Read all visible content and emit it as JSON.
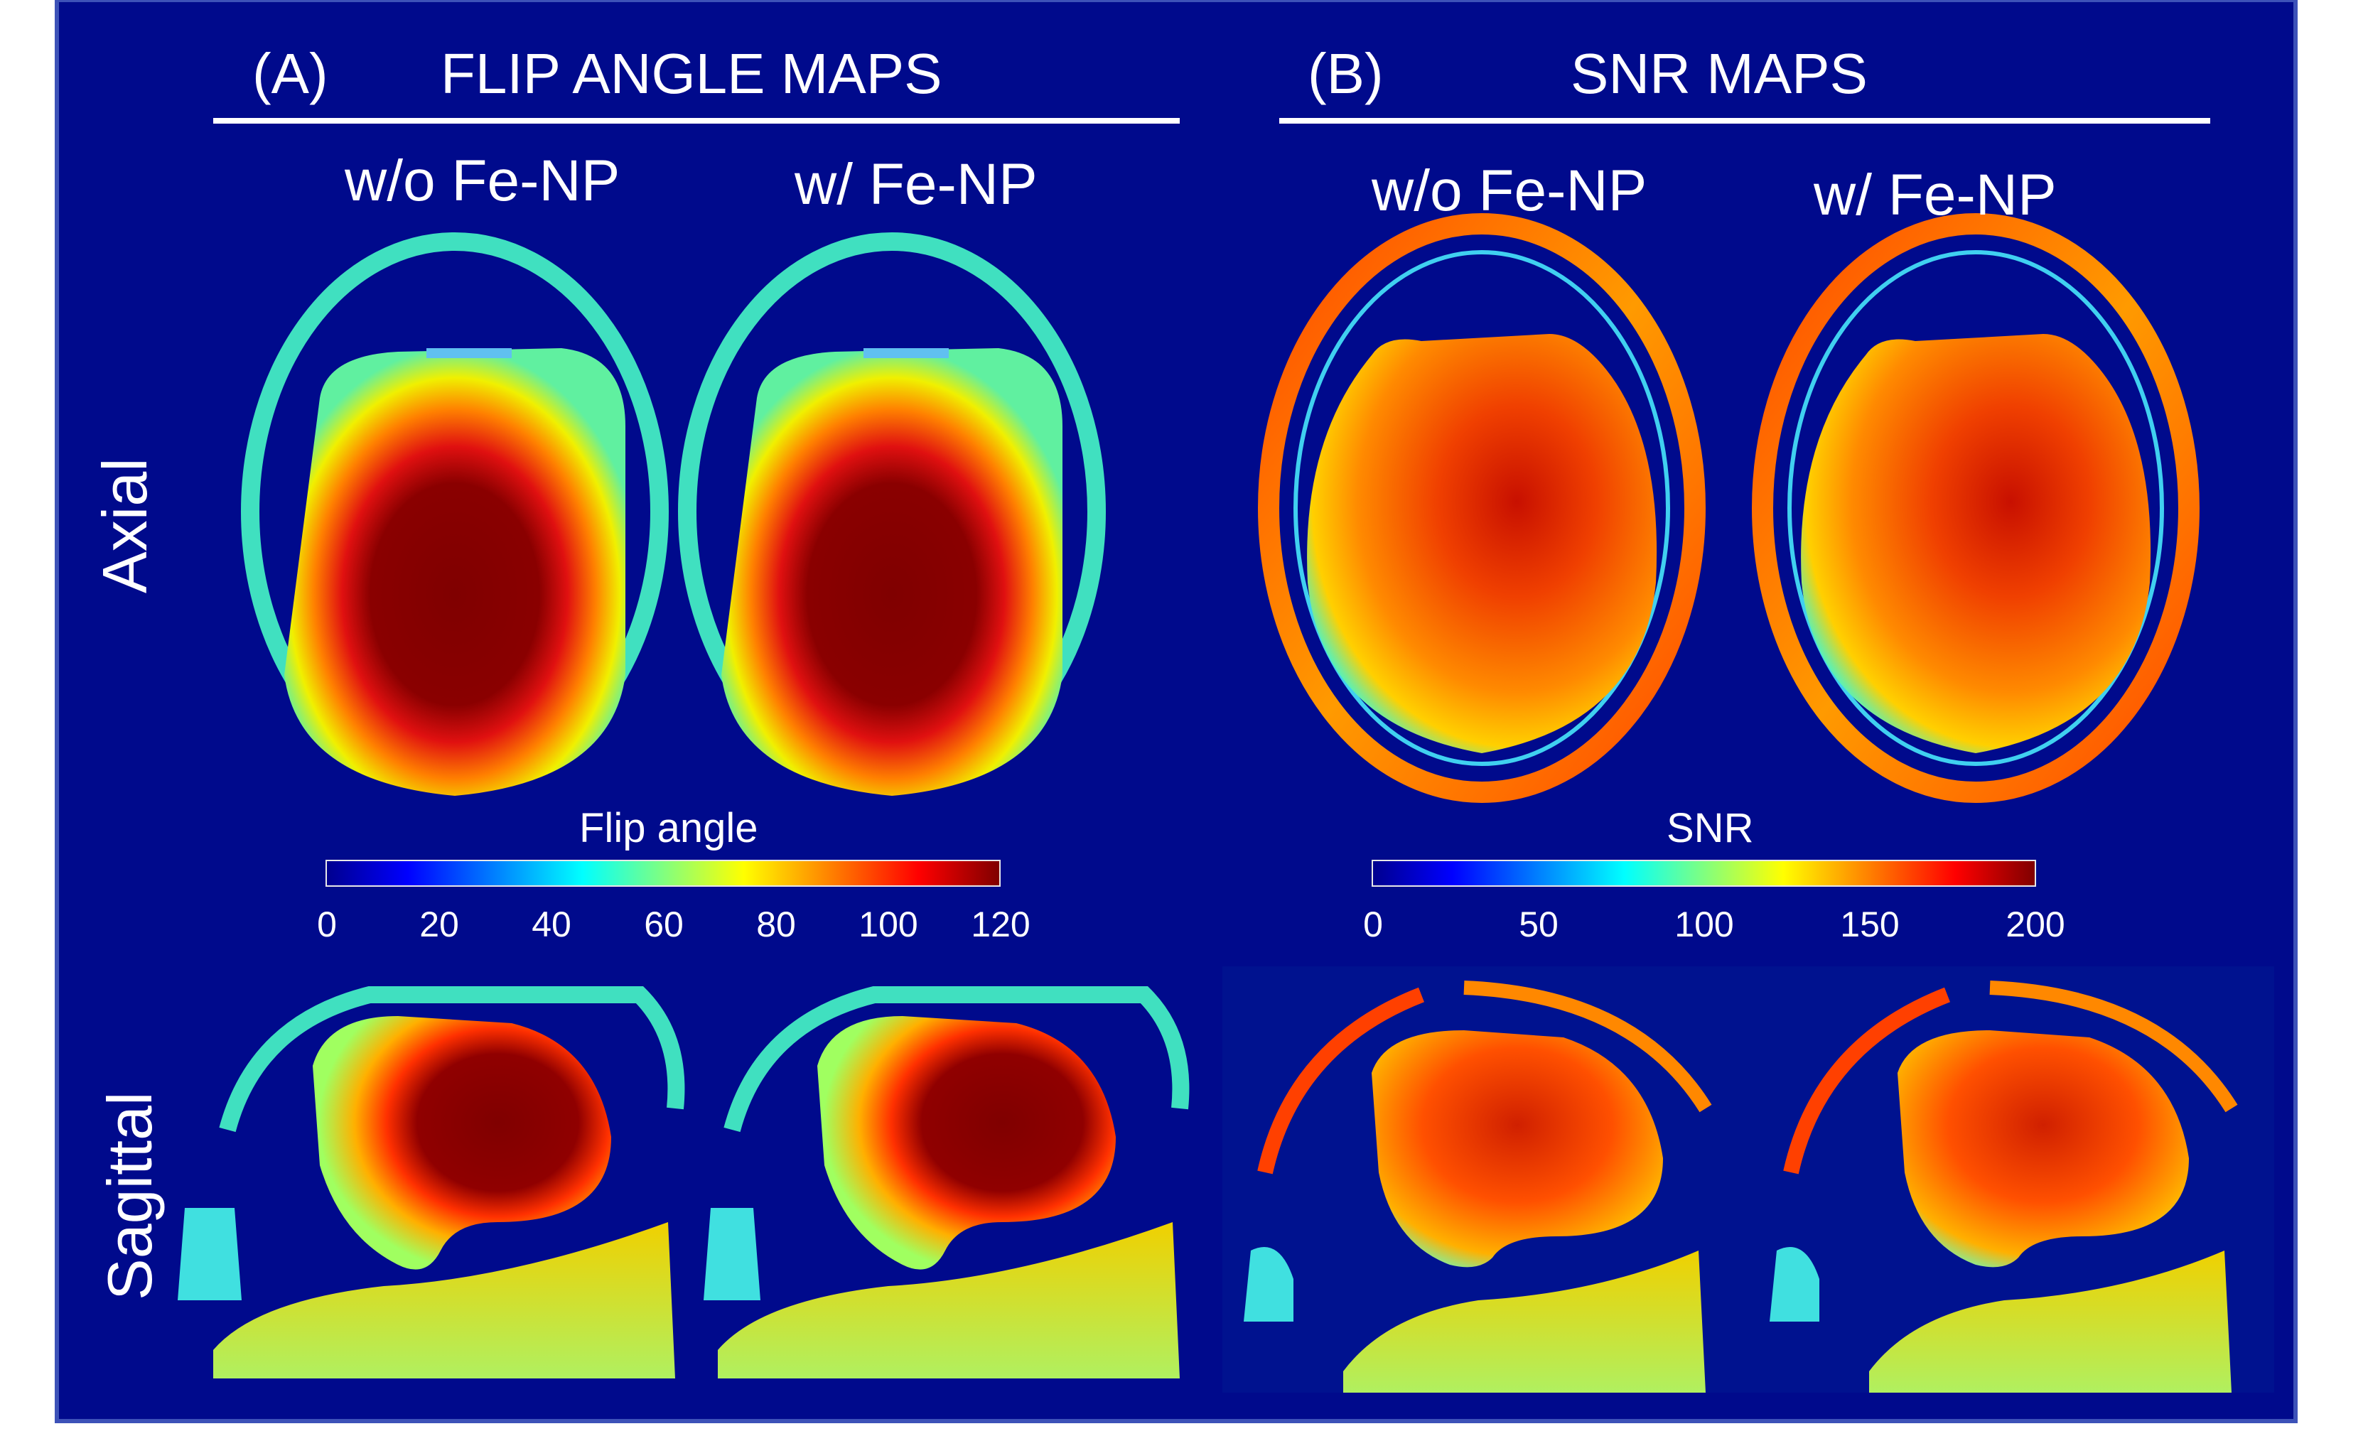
{
  "panels": {
    "a": {
      "letter": "(A)",
      "title": "FLIP ANGLE MAPS"
    },
    "b": {
      "letter": "(B)",
      "title": "SNR MAPS"
    }
  },
  "columns": {
    "without": "w/o Fe-NP",
    "with": "w/ Fe-NP"
  },
  "rows": {
    "axial": "Axial",
    "sagittal": "Sagittal"
  },
  "colorbars": {
    "flip": {
      "label": "Flip angle",
      "ticks": [
        "0",
        "20",
        "40",
        "60",
        "80",
        "100",
        "120"
      ]
    },
    "snr": {
      "label": "SNR",
      "ticks": [
        "0",
        "50",
        "100",
        "150",
        "200"
      ]
    }
  },
  "colors": {
    "background": "#000a8c",
    "frame_border": "#3d52b8",
    "text": "#ffffff"
  }
}
